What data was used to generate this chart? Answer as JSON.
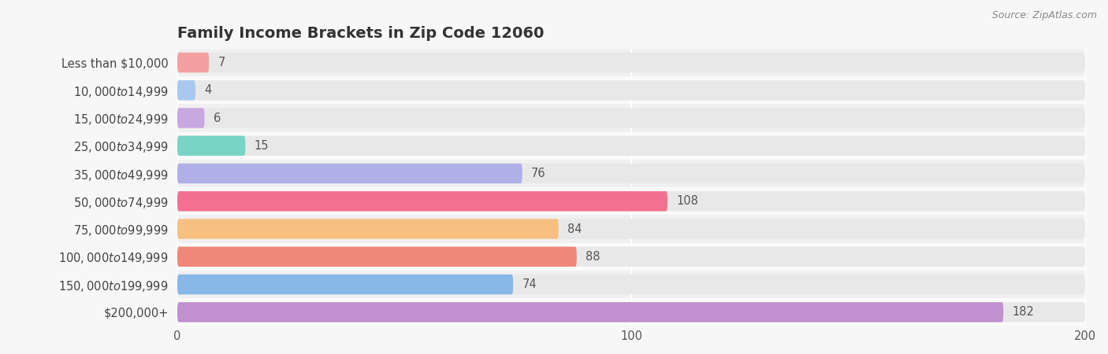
{
  "title": "Family Income Brackets in Zip Code 12060",
  "source": "Source: ZipAtlas.com",
  "categories": [
    "Less than $10,000",
    "$10,000 to $14,999",
    "$15,000 to $24,999",
    "$25,000 to $34,999",
    "$35,000 to $49,999",
    "$50,000 to $74,999",
    "$75,000 to $99,999",
    "$100,000 to $149,999",
    "$150,000 to $199,999",
    "$200,000+"
  ],
  "values": [
    7,
    4,
    6,
    15,
    76,
    108,
    84,
    88,
    74,
    182
  ],
  "bar_colors": [
    "#f4a0a0",
    "#a8c8f0",
    "#c8a8e0",
    "#78d4c4",
    "#b0b0e8",
    "#f47090",
    "#f8c080",
    "#f08878",
    "#88b8e8",
    "#c090d0"
  ],
  "background_color": "#f7f7f7",
  "bar_bg_color": "#e8e8e8",
  "row_bg_colors": [
    "#f0f0f0",
    "#fafafa"
  ],
  "xlim": [
    0,
    200
  ],
  "xticks": [
    0,
    100,
    200
  ],
  "title_fontsize": 14,
  "label_fontsize": 10.5,
  "value_fontsize": 10.5
}
